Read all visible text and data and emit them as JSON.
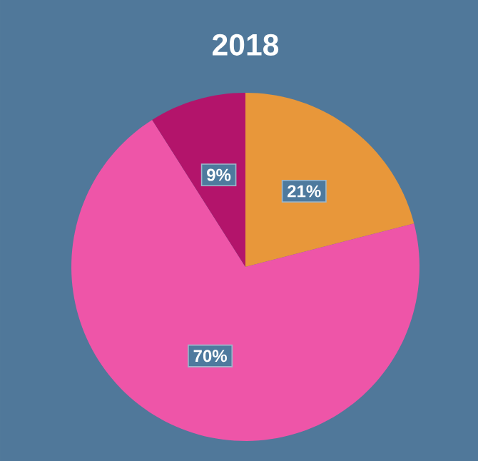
{
  "chart_data": {
    "type": "pie",
    "title": "2018",
    "categories": [
      null,
      null,
      null
    ],
    "values": [
      21,
      70,
      9
    ],
    "colors": [
      "#e8973a",
      "#ee55a8",
      "#b3146b"
    ],
    "value_labels": [
      "21%",
      "70%",
      "9%"
    ]
  }
}
